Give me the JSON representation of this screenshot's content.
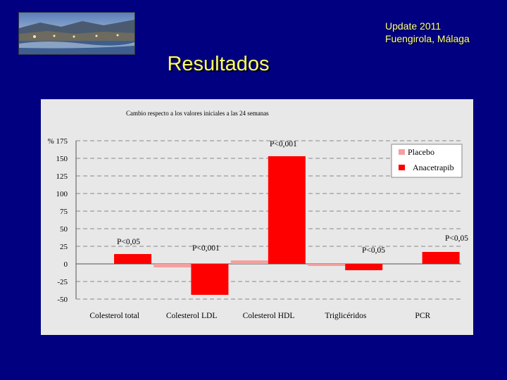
{
  "header": {
    "update_line1": "Update 2011",
    "update_line2": "Fuengirola, Málaga",
    "title": "Resultados"
  },
  "colors": {
    "background": "#000080",
    "header_text": "#ffff99",
    "title_text": "#ffff66",
    "placebo": "#f4a0a0",
    "anacetrapib": "#ff0000"
  },
  "chart_data": {
    "type": "bar",
    "title": "Cambio respecto a los valores iniciales a las 24 semanas",
    "ylabel": "%",
    "ylim": [
      -50,
      175
    ],
    "yticks": [
      -50,
      -25,
      0,
      25,
      50,
      75,
      100,
      125,
      150,
      175
    ],
    "grid": true,
    "legend_position": "top-right",
    "categories": [
      "Colesterol total",
      "Colesterol LDL",
      "Colesterol HDL",
      "Triglicéridos",
      "PCR"
    ],
    "series": [
      {
        "name": "Placebo",
        "color": "#f4a0a0",
        "values": [
          0,
          -5,
          5,
          -3,
          0
        ]
      },
      {
        "name": "Anacetrapib",
        "color": "#ff0000",
        "values": [
          14,
          -44,
          153,
          -9,
          17
        ]
      }
    ],
    "annotations": [
      "P<0,05",
      "P<0,001",
      "P<0,001",
      "P<0,05",
      "P<0,05"
    ]
  }
}
